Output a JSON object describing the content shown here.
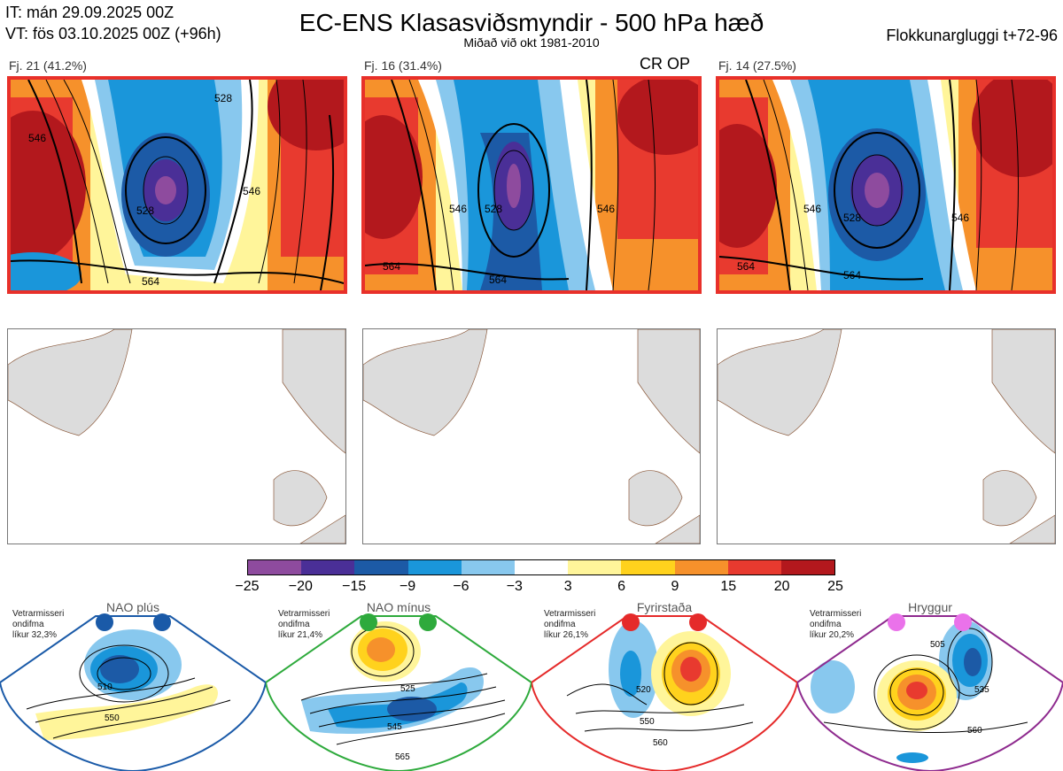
{
  "header": {
    "it_line": "IT: mán 29.09.2025 00Z",
    "vt_line": "VT: fös 03.10.2025 00Z  (+96h)",
    "title": "EC-ENS Klasasviðsmyndir - 500 hPa hæð",
    "subtitle": "Miðað við okt 1981-2010",
    "window": "Flokkunargluggi t+72-96"
  },
  "panels": [
    {
      "label": "Fj. 21 (41.2%)",
      "contours": [
        "528",
        "546",
        "564",
        "546",
        "528"
      ]
    },
    {
      "label": "Fj. 16 (31.4%)",
      "contours": [
        "528",
        "546",
        "564",
        "546",
        "564"
      ],
      "tag": "CR OP"
    },
    {
      "label": "Fj. 14 (27.5%)",
      "contours": [
        "528",
        "546",
        "564",
        "546",
        "564"
      ]
    }
  ],
  "colorbar": {
    "colors": [
      "#8e4b9e",
      "#4a2f97",
      "#1c5aa6",
      "#1a96da",
      "#88c8ee",
      "#ffffff",
      "#fff59a",
      "#ffd21d",
      "#f6912b",
      "#e83a2f",
      "#b3181d"
    ],
    "ticks": [
      "−25",
      "−20",
      "−15",
      "−9",
      "−6",
      "−3",
      "3",
      "6",
      "9",
      "15",
      "20",
      "25"
    ]
  },
  "regimes": [
    {
      "name": "NAO plús",
      "stats": [
        "Vetrarmisseri",
        "ondifma",
        "líkur 32,3%"
      ],
      "frame_color": "#1a5aa8",
      "dot_color": "#1a5aa8",
      "labels": [
        "510",
        "550"
      ]
    },
    {
      "name": "NAO mínus",
      "stats": [
        "Vetrarmisseri",
        "ondifma",
        "líkur 21,4%"
      ],
      "frame_color": "#2eaa3c",
      "dot_color": "#2eaa3c",
      "labels": [
        "525",
        "545",
        "565"
      ]
    },
    {
      "name": "Fyrirstaða",
      "stats": [
        "Vetrarmisseri",
        "ondifma",
        "líkur 26,1%"
      ],
      "frame_color": "#e52a2a",
      "dot_color": "#e52a2a",
      "labels": [
        "520",
        "550",
        "560"
      ]
    },
    {
      "name": "Hryggur",
      "stats": [
        "Vetrarmisseri",
        "ondifma",
        "líkur 20,2%"
      ],
      "frame_color": "#8e2a8e",
      "dot_color": "#ea72ea",
      "labels": [
        "505",
        "535",
        "560"
      ]
    }
  ]
}
